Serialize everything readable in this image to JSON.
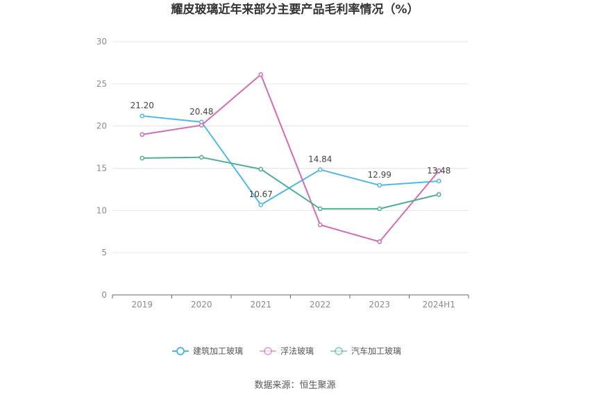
{
  "chart_data": {
    "type": "line",
    "title": "耀皮玻璃近年来部分主要产品毛利率情况（%）",
    "categories": [
      "2019",
      "2020",
      "2021",
      "2022",
      "2023",
      "2024H1"
    ],
    "ylim": [
      0,
      30
    ],
    "yticks": [
      0,
      5,
      10,
      15,
      20,
      25,
      30
    ],
    "ytick_labels": [
      "0",
      "5",
      "10",
      "15",
      "20",
      "25",
      "30"
    ],
    "grid": true,
    "legend_position": "bottom",
    "series": [
      {
        "name": "建筑加工玻璃",
        "color": "#4db8e8",
        "values": [
          21.2,
          20.48,
          10.67,
          14.84,
          12.99,
          13.48
        ],
        "labels": [
          "21.20",
          "20.48",
          "10.67",
          "14.84",
          "12.99",
          "13.48"
        ]
      },
      {
        "name": "浮法玻璃",
        "color": "#d46ab0",
        "values": [
          19.0,
          20.1,
          26.1,
          8.3,
          6.3,
          14.7
        ]
      },
      {
        "name": "汽车加工玻璃",
        "color": "#4caf93",
        "values": [
          16.2,
          16.3,
          14.9,
          10.2,
          10.2,
          11.9
        ]
      }
    ]
  },
  "source": "数据来源：恒生聚源"
}
